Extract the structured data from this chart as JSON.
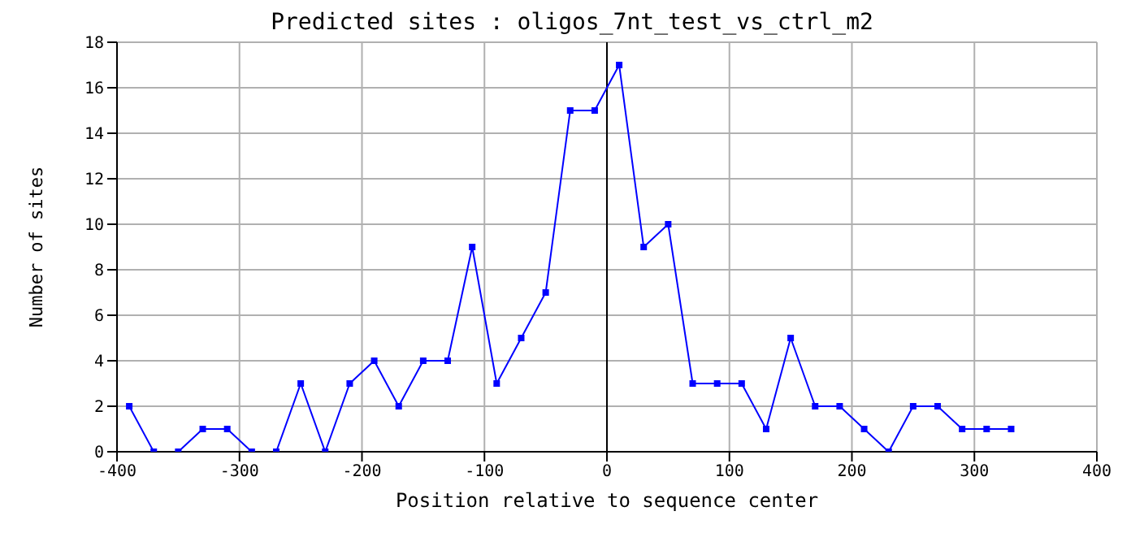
{
  "chart_data": {
    "type": "line",
    "title": "Predicted sites : oligos_7nt_test_vs_ctrl_m2",
    "xlabel": "Position relative to sequence center",
    "ylabel": "Number of sites",
    "x": [
      -390,
      -370,
      -350,
      -330,
      -310,
      -290,
      -270,
      -250,
      -230,
      -210,
      -190,
      -170,
      -150,
      -130,
      -110,
      -90,
      -70,
      -50,
      -30,
      -10,
      10,
      30,
      50,
      70,
      90,
      110,
      130,
      150,
      170,
      190,
      210,
      230,
      250,
      270,
      290,
      310,
      330
    ],
    "series": [
      {
        "color": "#0000ff",
        "values": [
          2,
          0,
          0,
          1,
          1,
          0,
          0,
          3,
          0,
          3,
          4,
          2,
          4,
          4,
          9,
          3,
          5,
          7,
          15,
          15,
          17,
          9,
          10,
          3,
          3,
          3,
          1,
          5,
          2,
          2,
          1,
          0,
          2,
          2,
          1,
          1,
          1
        ]
      }
    ],
    "xlim": [
      -400,
      400
    ],
    "xticks": [
      -400,
      -300,
      -200,
      -100,
      0,
      100,
      200,
      300,
      400
    ],
    "ylim": [
      0,
      18
    ],
    "yticks": [
      0,
      2,
      4,
      6,
      8,
      10,
      12,
      14,
      16,
      18
    ],
    "ref_lines": [
      {
        "axis": "x",
        "value": 0,
        "color": "#000000"
      }
    ],
    "grid": true,
    "marker": "square",
    "line_style": "solid"
  }
}
